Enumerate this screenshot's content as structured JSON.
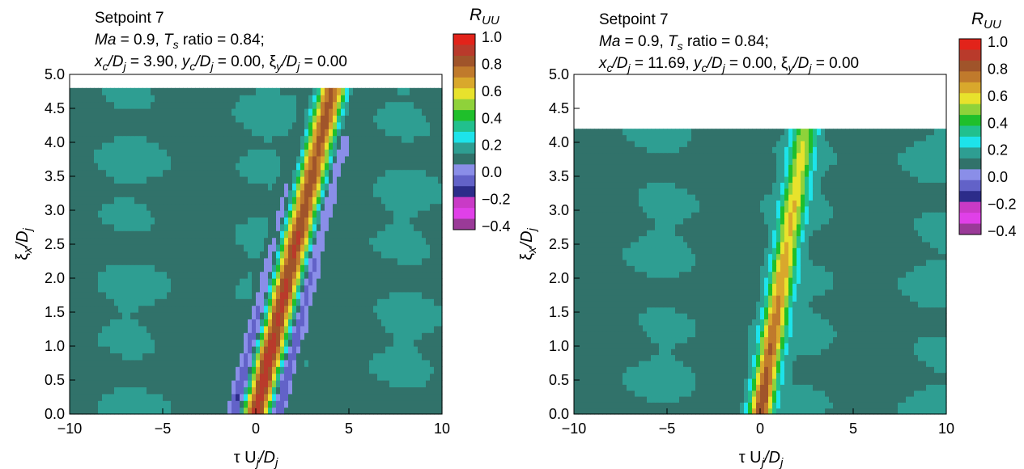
{
  "chart_data": [
    {
      "type": "heatmap",
      "title_lines": {
        "setpoint": "Setpoint 7",
        "conditions": {
          "ma": "Ma",
          "ma_val": " = 0.9, ",
          "ts": "T",
          "ts_sub": "s",
          "ts_rest": " ratio = 0.84;"
        },
        "location": {
          "xc": "x",
          "xc_sub": "c",
          "d1": "/D",
          "d1_sub": "j",
          "xc_val": " = 3.90, ",
          "yc": "y",
          "yc_sub": "c",
          "d2": "/D",
          "d2_sub": "j",
          "yc_val": " = 0.00,  ",
          "xi": "ξ",
          "xi_sub": "y",
          "d3": "/D",
          "d3_sub": "j",
          "xi_val": " = 0.00"
        }
      },
      "xlabel": {
        "a": "τ U",
        "a_sub": "j",
        "b": "/D",
        "b_sub": "j"
      },
      "ylabel": {
        "a": "ξ",
        "a_sub": "x",
        "b": "/D",
        "b_sub": "j"
      },
      "xlim": [
        -10,
        10
      ],
      "ylim": [
        0,
        5
      ],
      "data_ymax": 4.8,
      "xticks": [
        "−10",
        "−5",
        "0",
        "5",
        "10"
      ],
      "yticks": [
        "0.0",
        "0.5",
        "1.0",
        "1.5",
        "2.0",
        "2.5",
        "3.0",
        "3.5",
        "4.0",
        "4.5",
        "5.0"
      ],
      "grid": false,
      "band": {
        "x0": 0.0,
        "slope_dtau_dxi": 0.86,
        "peak": 0.95,
        "ridge_decay": 0.02
      },
      "colorbar": {
        "label": "R",
        "label_sub": "UU",
        "ticks": [
          "1.0",
          "0.8",
          "0.6",
          "0.4",
          "0.2",
          "0.0",
          "−0.2",
          "−0.4"
        ],
        "levels": [
          1.0,
          0.9,
          0.8,
          0.7,
          0.6,
          0.5,
          0.4,
          0.3,
          0.2,
          0.1,
          0.0,
          -0.1,
          -0.2,
          -0.3,
          -0.4
        ],
        "colors": [
          "#e2231a",
          "#b93a2b",
          "#a0542a",
          "#c07a2c",
          "#d9a82c",
          "#e8e22c",
          "#8fd23a",
          "#1fbf2b",
          "#21c08d",
          "#1de3ea",
          "#2e9e92",
          "#31726a",
          "#8a8ee8",
          "#6262c8",
          "#2c2c8a",
          "#c93ac6",
          "#e040e8",
          "#9a3a98"
        ]
      }
    },
    {
      "type": "heatmap",
      "title_lines": {
        "setpoint": "Setpoint 7",
        "conditions": {
          "ma": "Ma",
          "ma_val": " = 0.9, ",
          "ts": "T",
          "ts_sub": "s",
          "ts_rest": " ratio = 0.84;"
        },
        "location": {
          "xc": "x",
          "xc_sub": "c",
          "d1": "/D",
          "d1_sub": "j",
          "xc_val": " = 11.69, ",
          "yc": "y",
          "yc_sub": "c",
          "d2": "/D",
          "d2_sub": "j",
          "yc_val": " = 0.00, ",
          "xi": "ξ",
          "xi_sub": "y",
          "d3": "/D",
          "d3_sub": "j",
          "xi_val": " = 0.00"
        }
      },
      "xlabel": {
        "a": "τ U",
        "a_sub": "j",
        "b": "/D",
        "b_sub": "j"
      },
      "ylabel": {
        "a": "ξ",
        "a_sub": "x",
        "b": "/D",
        "b_sub": "j"
      },
      "xlim": [
        -10,
        10
      ],
      "ylim": [
        0,
        5
      ],
      "data_ymax": 4.2,
      "xticks": [
        "−10",
        "−5",
        "0",
        "5",
        "10"
      ],
      "yticks": [
        "0.0",
        "0.5",
        "1.0",
        "1.5",
        "2.0",
        "2.5",
        "3.0",
        "3.5",
        "4.0",
        "4.5",
        "5.0"
      ],
      "grid": false,
      "band": {
        "x0": 0.0,
        "slope_dtau_dxi": 0.58,
        "peak": 0.95,
        "ridge_decay": 0.16
      },
      "colorbar": {
        "label": "R",
        "label_sub": "UU",
        "ticks": [
          "1.0",
          "0.8",
          "0.6",
          "0.4",
          "0.2",
          "0.0",
          "−0.2",
          "−0.4"
        ],
        "levels": [
          1.0,
          0.9,
          0.8,
          0.7,
          0.6,
          0.5,
          0.4,
          0.3,
          0.2,
          0.1,
          0.0,
          -0.1,
          -0.2,
          -0.3,
          -0.4
        ],
        "colors": [
          "#e2231a",
          "#b93a2b",
          "#a0542a",
          "#c07a2c",
          "#d9a82c",
          "#e8e22c",
          "#8fd23a",
          "#1fbf2b",
          "#21c08d",
          "#1de3ea",
          "#2e9e92",
          "#31726a",
          "#8a8ee8",
          "#6262c8",
          "#2c2c8a",
          "#c93ac6",
          "#e040e8",
          "#9a3a98"
        ]
      }
    }
  ]
}
